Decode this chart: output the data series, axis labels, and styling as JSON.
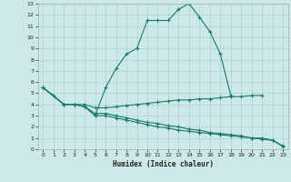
{
  "xlabel": "Humidex (Indice chaleur)",
  "background_color": "#cce8e8",
  "grid_color": "#aad4d4",
  "line_color": "#1a7a6a",
  "xlim": [
    -0.5,
    23.5
  ],
  "ylim": [
    0,
    13
  ],
  "xticks": [
    0,
    1,
    2,
    3,
    4,
    5,
    6,
    7,
    8,
    9,
    10,
    11,
    12,
    13,
    14,
    15,
    16,
    17,
    18,
    19,
    20,
    21,
    22,
    23
  ],
  "yticks": [
    0,
    1,
    2,
    3,
    4,
    5,
    6,
    7,
    8,
    9,
    10,
    11,
    12,
    13
  ],
  "series1_x": [
    0,
    1,
    2,
    3,
    4,
    5,
    6,
    7,
    8,
    9,
    10,
    11,
    12,
    13,
    14,
    15,
    16,
    17,
    18
  ],
  "series1_y": [
    5.5,
    4.8,
    4.0,
    4.0,
    3.8,
    3.0,
    5.5,
    7.2,
    8.5,
    9.0,
    11.5,
    11.5,
    11.5,
    12.5,
    13.0,
    11.8,
    10.5,
    8.5,
    4.8
  ],
  "series2_x": [
    0,
    2,
    3,
    4,
    5,
    6,
    7,
    8,
    9,
    10,
    11,
    12,
    13,
    14,
    15,
    16,
    17,
    18,
    19,
    20,
    21
  ],
  "series2_y": [
    5.5,
    4.0,
    4.0,
    4.0,
    3.7,
    3.7,
    3.8,
    3.9,
    4.0,
    4.1,
    4.2,
    4.3,
    4.4,
    4.4,
    4.5,
    4.5,
    4.6,
    4.7,
    4.7,
    4.8,
    4.8
  ],
  "series3_x": [
    0,
    2,
    3,
    4,
    5,
    6,
    7,
    8,
    9,
    10,
    11,
    12,
    13,
    14,
    15,
    16,
    17,
    18,
    19,
    20,
    21,
    22,
    23
  ],
  "series3_y": [
    5.5,
    4.0,
    4.0,
    3.8,
    3.2,
    3.2,
    3.0,
    2.8,
    2.6,
    2.4,
    2.3,
    2.1,
    2.0,
    1.8,
    1.7,
    1.5,
    1.4,
    1.3,
    1.2,
    1.0,
    1.0,
    0.8,
    0.3
  ],
  "series4_x": [
    4,
    5,
    6,
    7,
    8,
    9,
    10,
    11,
    12,
    13,
    14,
    15,
    16,
    17,
    18,
    19,
    20,
    21,
    22,
    23
  ],
  "series4_y": [
    3.8,
    3.0,
    3.0,
    2.8,
    2.6,
    2.4,
    2.2,
    2.0,
    1.9,
    1.7,
    1.6,
    1.5,
    1.4,
    1.3,
    1.2,
    1.1,
    1.0,
    0.9,
    0.8,
    0.25
  ]
}
